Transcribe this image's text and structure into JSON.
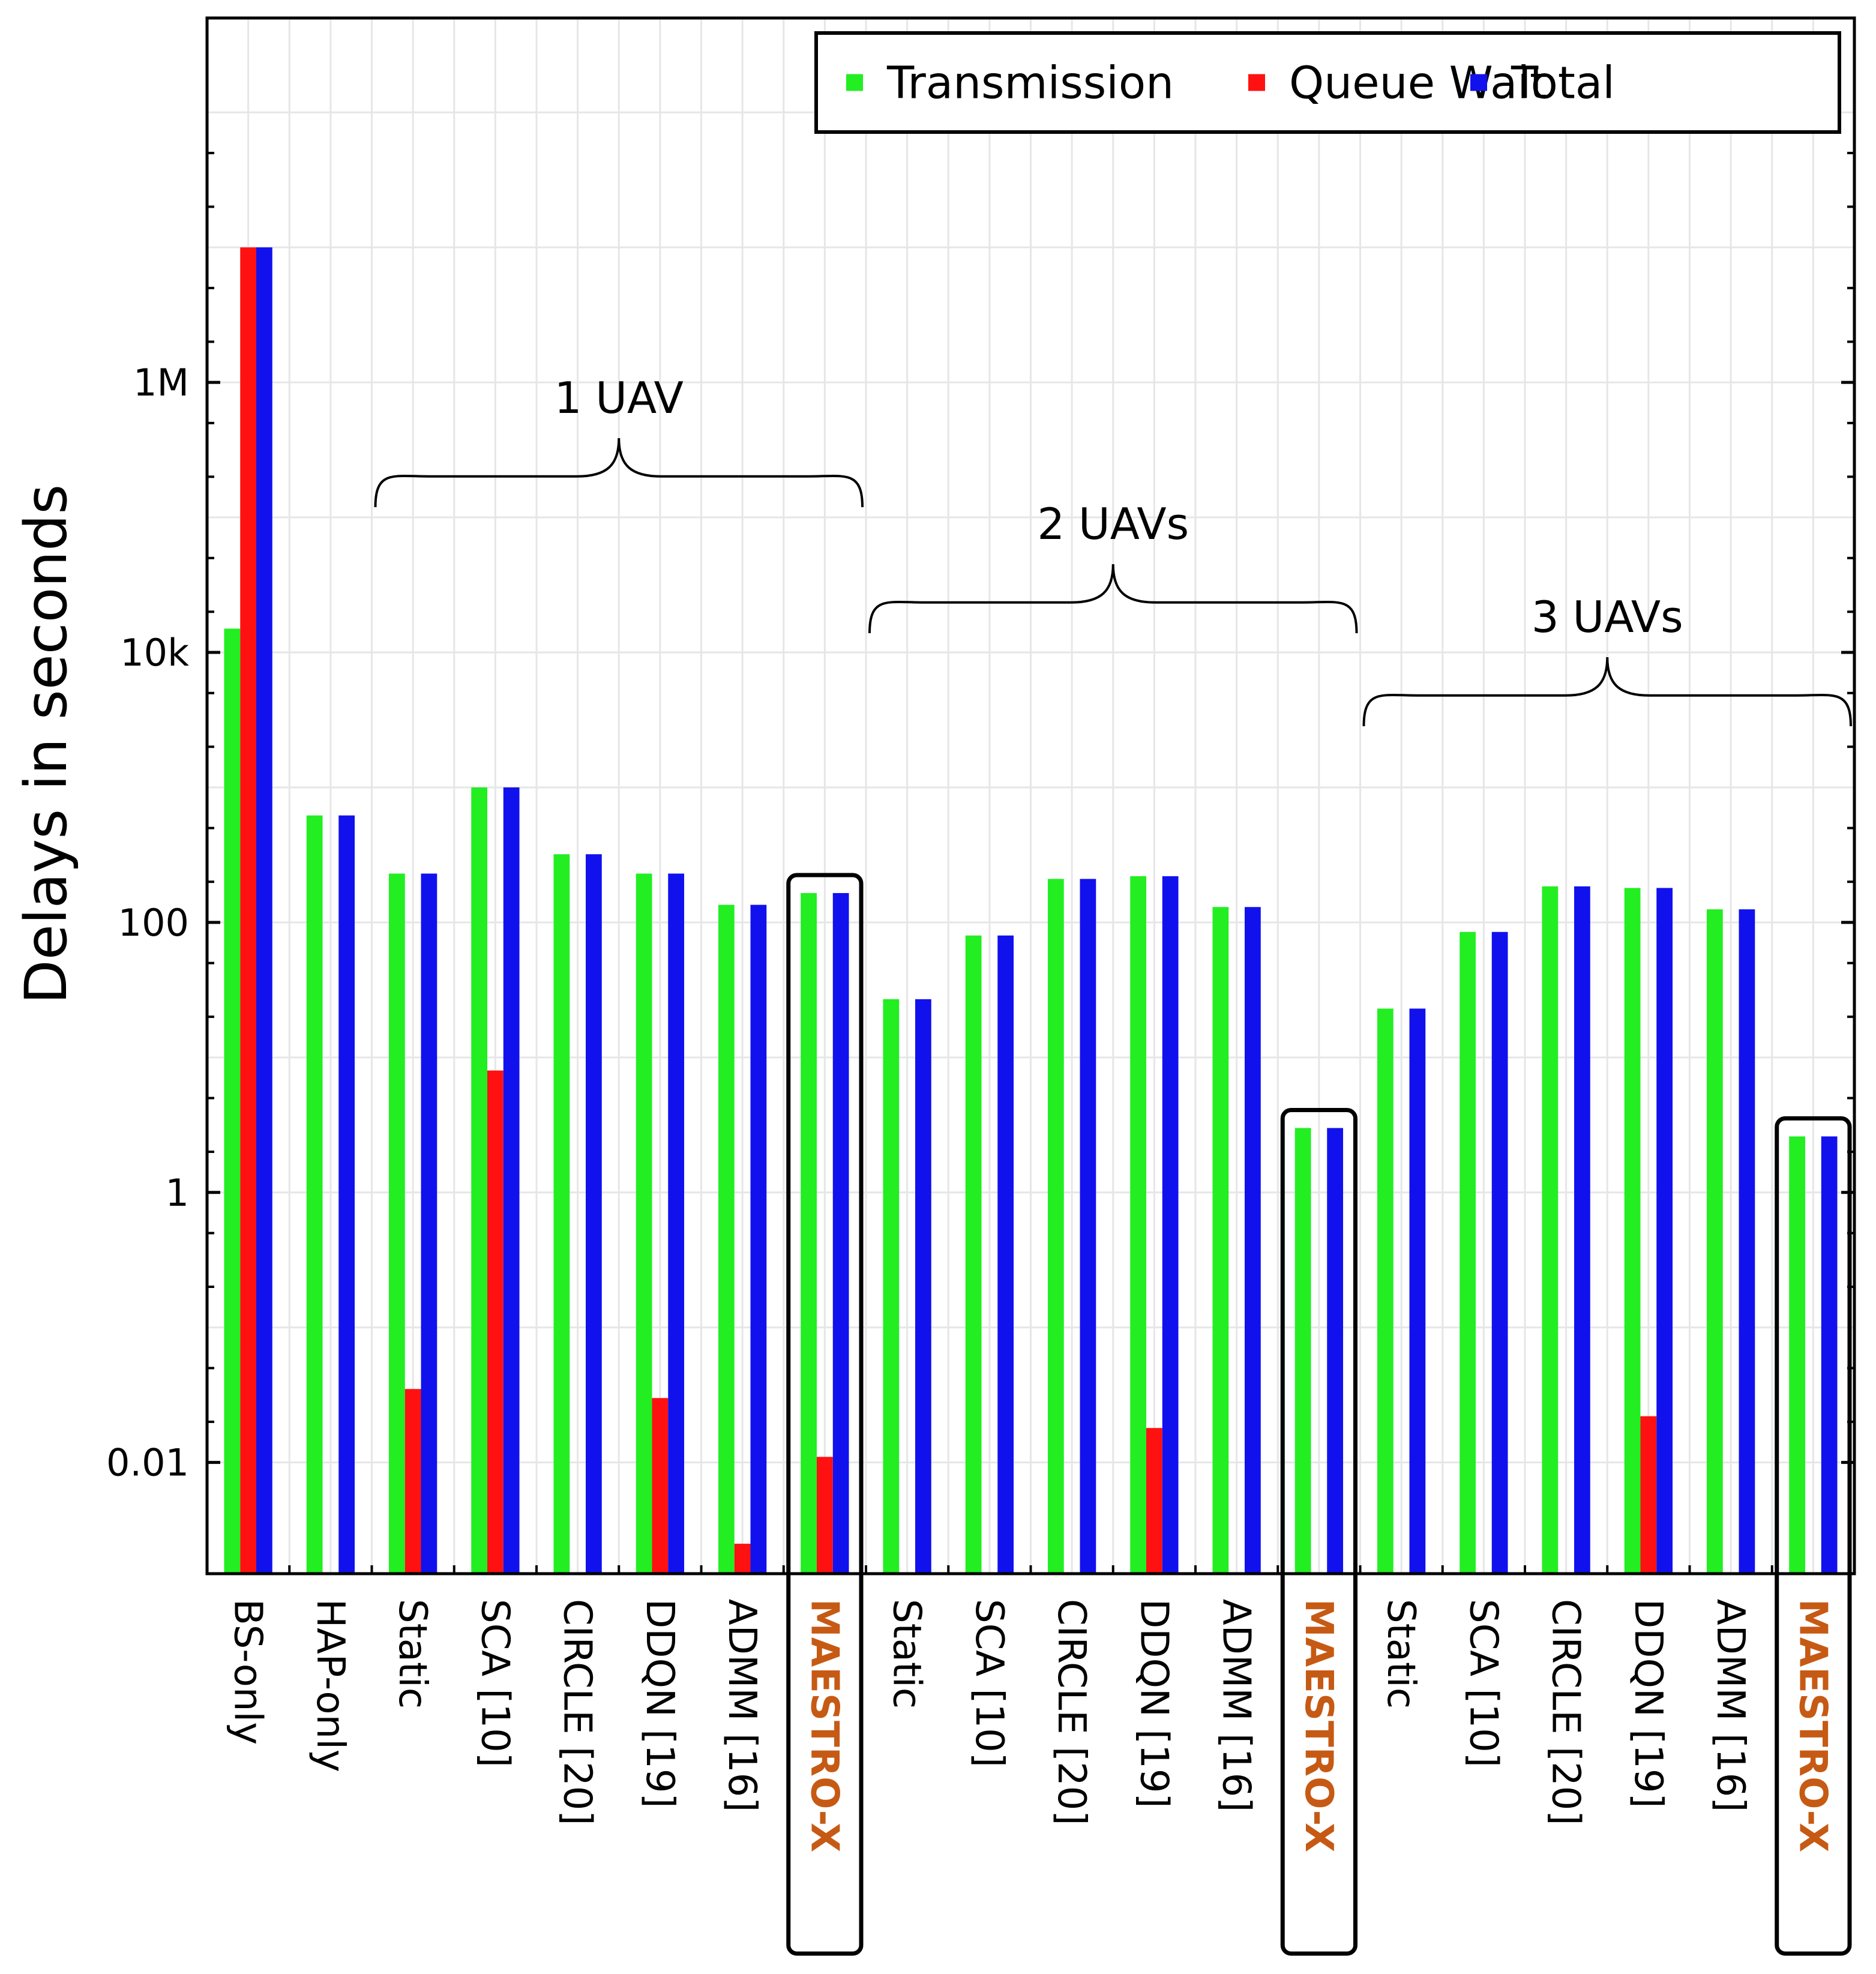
{
  "chart_data": {
    "type": "bar",
    "ylabel": "Delays in seconds",
    "yscale": "log",
    "ylim": [
      0.0015,
      500000000
    ],
    "yticks": [
      0.01,
      1,
      100,
      10000,
      1000000
    ],
    "ytick_labels": [
      "0.01",
      "1",
      "100",
      "10k",
      "1M"
    ],
    "grid": true,
    "legend_position": "top-right",
    "categories": [
      "BS-only",
      "HAP-only",
      "Static",
      "SCA [10]",
      "CIRCLE [20]",
      "DDQN [19]",
      "ADMM [16]",
      "MAESTRO-X",
      "Static",
      "SCA [10]",
      "CIRCLE [20]",
      "DDQN [19]",
      "ADMM [16]",
      "MAESTRO-X",
      "Static",
      "SCA [10]",
      "CIRCLE [20]",
      "DDQN [19]",
      "ADMM [16]",
      "MAESTRO-X"
    ],
    "highlighted_categories": [
      7,
      13,
      19
    ],
    "series": [
      {
        "name": "Transmission",
        "color": "#22ee22",
        "values": [
          15000,
          620,
          230,
          1000,
          320,
          230,
          135,
          165,
          27,
          80,
          210,
          220,
          130,
          3,
          23,
          85,
          185,
          180,
          125,
          2.6
        ]
      },
      {
        "name": "Queue Wait",
        "color": "#ff1111",
        "values": [
          10000000,
          null,
          0.035,
          8,
          null,
          0.03,
          0.0025,
          0.011,
          null,
          null,
          null,
          0.018,
          null,
          null,
          null,
          null,
          null,
          0.022,
          null,
          null
        ]
      },
      {
        "name": "Total",
        "color": "#1111ee",
        "values": [
          10000000,
          620,
          230,
          1000,
          320,
          230,
          135,
          165,
          27,
          80,
          210,
          220,
          130,
          3,
          23,
          85,
          185,
          180,
          125,
          2.6
        ]
      }
    ],
    "annotations": [
      {
        "text": "1 UAV",
        "from_category": 2,
        "to_category": 7
      },
      {
        "text": "2 UAVs",
        "from_category": 8,
        "to_category": 13
      },
      {
        "text": "3 UAVs",
        "from_category": 14,
        "to_category": 19
      }
    ]
  }
}
